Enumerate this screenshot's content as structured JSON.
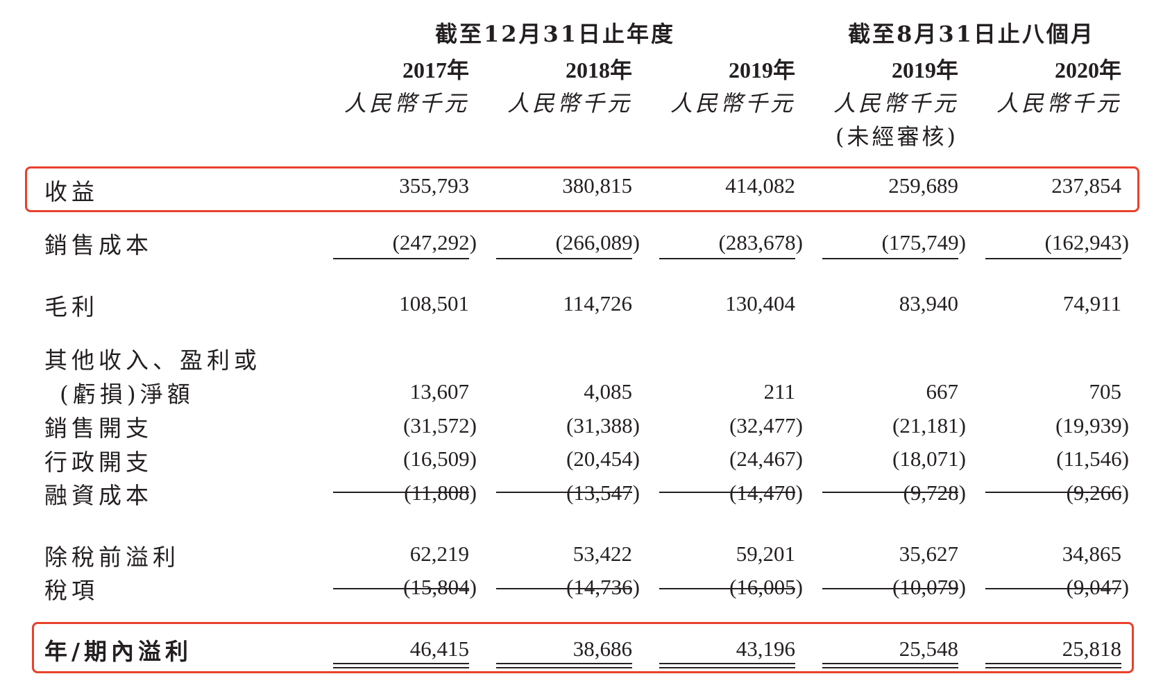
{
  "header": {
    "group1": "截至12月31日止年度",
    "group2": "截至8月31日止八個月",
    "columns": [
      {
        "year": "2017年",
        "unit": "人民幣千元",
        "note": ""
      },
      {
        "year": "2018年",
        "unit": "人民幣千元",
        "note": ""
      },
      {
        "year": "2019年",
        "unit": "人民幣千元",
        "note": ""
      },
      {
        "year": "2019年",
        "unit": "人民幣千元",
        "note": "(未經審核)"
      },
      {
        "year": "2020年",
        "unit": "人民幣千元",
        "note": ""
      }
    ]
  },
  "rows": [
    {
      "label": "收益",
      "values": [
        "355,793",
        "380,815",
        "414,082",
        "259,689",
        "237,854"
      ]
    },
    {
      "label": "銷售成本",
      "values": [
        "(247,292)",
        "(266,089)",
        "(283,678)",
        "(175,749)",
        "(162,943)"
      ]
    },
    {
      "label": "毛利",
      "values": [
        "108,501",
        "114,726",
        "130,404",
        "83,940",
        "74,911"
      ]
    },
    {
      "label": "其他收入、盈利或",
      "label2": "(虧損)淨額",
      "values": [
        "13,607",
        "4,085",
        "211",
        "667",
        "705"
      ]
    },
    {
      "label": "銷售開支",
      "values": [
        "(31,572)",
        "(31,388)",
        "(32,477)",
        "(21,181)",
        "(19,939)"
      ]
    },
    {
      "label": "行政開支",
      "values": [
        "(16,509)",
        "(20,454)",
        "(24,467)",
        "(18,071)",
        "(11,546)"
      ]
    },
    {
      "label": "融資成本",
      "values": [
        "(11,808)",
        "(13,547)",
        "(14,470)",
        "(9,728)",
        "(9,266)"
      ]
    },
    {
      "label": "除稅前溢利",
      "values": [
        "62,219",
        "53,422",
        "59,201",
        "35,627",
        "34,865"
      ]
    },
    {
      "label": "稅項",
      "values": [
        "(15,804)",
        "(14,736)",
        "(16,005)",
        "(10,079)",
        "(9,047)"
      ]
    },
    {
      "label": "年/期內溢利",
      "values": [
        "46,415",
        "38,686",
        "43,196",
        "25,548",
        "25,818"
      ]
    }
  ],
  "highlight_color": "#e8412c"
}
